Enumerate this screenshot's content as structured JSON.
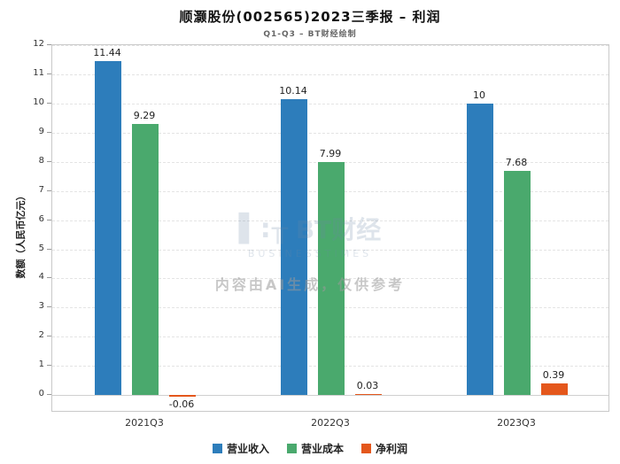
{
  "title": "顺灏股份(002565)2023三季报 – 利润",
  "subtitle": "Q1-Q3 – BT财经绘制",
  "watermark": {
    "logo_glyph": "▌:╥",
    "logo_text": "BT财经",
    "logo_sub": "BUSINESSTIMES",
    "disclaimer": "内容由AI生成，仅供参考"
  },
  "chart_data": {
    "type": "bar",
    "categories": [
      "2021Q3",
      "2022Q3",
      "2023Q3"
    ],
    "series": [
      {
        "name": "营业收入",
        "color": "#2d7dbb",
        "values": [
          11.44,
          10.14,
          10
        ]
      },
      {
        "name": "营业成本",
        "color": "#4aa96d",
        "values": [
          9.29,
          7.99,
          7.68
        ]
      },
      {
        "name": "净利润",
        "color": "#e4571c",
        "values": [
          -0.06,
          0.03,
          0.39
        ]
      }
    ],
    "ylabel": "数额（人民币亿元）",
    "xlabel": "",
    "ylim": [
      -0.6,
      12
    ],
    "yticks": [
      0,
      1,
      2,
      3,
      4,
      5,
      6,
      7,
      8,
      9,
      10,
      11,
      12
    ],
    "grid": true,
    "legend_position": "bottom"
  }
}
